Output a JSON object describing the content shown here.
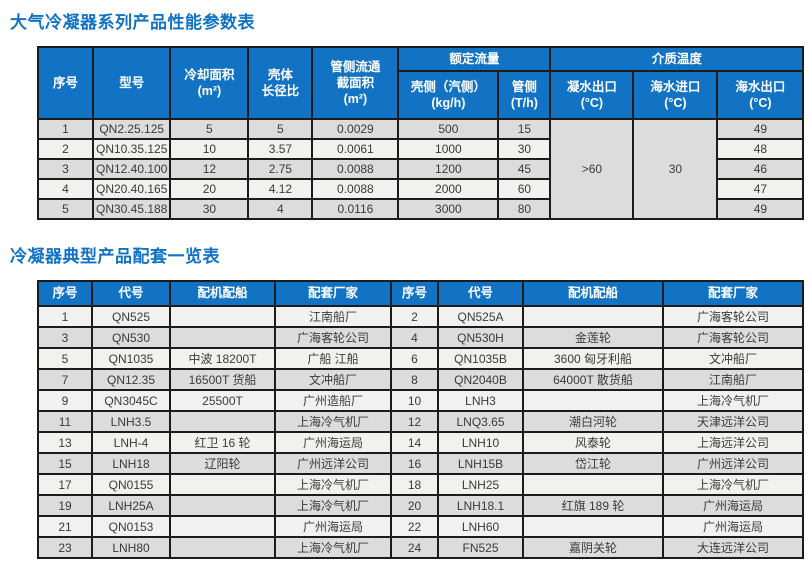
{
  "colors": {
    "title_blue": "#1273c4",
    "header_blue": "#1273c4",
    "header_text": "#ffffff",
    "row_gray": "#dcdcdc",
    "row_light": "#f1f1f0",
    "border_dark": "#1c1c1c",
    "cell_text": "#3a3a3a"
  },
  "table1": {
    "title": "大气冷凝器系列产品性能参数表",
    "headers": {
      "seq": "序号",
      "model": "型号",
      "cooling_area": "冷却面积",
      "cooling_area_unit": "(m²)",
      "shell_ratio_line1": "壳体",
      "shell_ratio_line2": "长径比",
      "tube_area_line1": "管侧流通",
      "tube_area_line2": "截面积",
      "tube_area_unit": "(m²)",
      "rated_flow": "额定流量",
      "shell_side": "壳侧（汽侧）",
      "shell_side_unit": "(kg/h)",
      "tube_side": "管侧",
      "tube_side_unit": "(T/h)",
      "medium_temp": "介质温度",
      "condensate_out": "凝水出口",
      "condensate_out_unit": "(°C)",
      "seawater_in": "海水进口",
      "seawater_in_unit": "(°C)",
      "seawater_out": "海水出口",
      "seawater_out_unit": "(°C)"
    },
    "merged": {
      "condensate_out_value": ">60",
      "seawater_in_value": "30"
    },
    "rows": [
      [
        "1",
        "QN2.25.125",
        "5",
        "5",
        "0.0029",
        "500",
        "15",
        "49"
      ],
      [
        "2",
        "QN10.35.125",
        "10",
        "3.57",
        "0.0061",
        "1000",
        "30",
        "48"
      ],
      [
        "3",
        "QN12.40.100",
        "12",
        "2.75",
        "0.0088",
        "1200",
        "45",
        "46"
      ],
      [
        "4",
        "QN20.40.165",
        "20",
        "4.12",
        "0.0088",
        "2000",
        "60",
        "47"
      ],
      [
        "5",
        "QN30.45.188",
        "30",
        "4",
        "0.0116",
        "3000",
        "80",
        "49"
      ]
    ]
  },
  "table2": {
    "title": "冷凝器典型产品配套一览表",
    "headers": [
      "序号",
      "代号",
      "配机配船",
      "配套厂家"
    ],
    "left_rows": [
      [
        "1",
        "QN525",
        "",
        "江南船厂"
      ],
      [
        "3",
        "QN530",
        "",
        "广海客轮公司"
      ],
      [
        "5",
        "QN1035",
        "中波 18200T",
        "广船 江船"
      ],
      [
        "7",
        "QN12.35",
        "16500T 货船",
        "文冲船厂"
      ],
      [
        "9",
        "QN3045C",
        "25500T",
        "广州造船厂"
      ],
      [
        "11",
        "LNH3.5",
        "",
        "上海冷气机厂"
      ],
      [
        "13",
        "LNH-4",
        "红卫 16 轮",
        "广州海运局"
      ],
      [
        "15",
        "LNH18",
        "辽阳轮",
        "广州远洋公司"
      ],
      [
        "17",
        "QN0155",
        "",
        "上海冷气机厂"
      ],
      [
        "19",
        "LNH25A",
        "",
        "上海冷气机厂"
      ],
      [
        "21",
        "QN0153",
        "",
        "广州海运局"
      ],
      [
        "23",
        "LNH80",
        "",
        "上海冷气机厂"
      ]
    ],
    "right_rows": [
      [
        "2",
        "QN525A",
        "",
        "广海客轮公司"
      ],
      [
        "4",
        "QN530H",
        "金莲轮",
        "广海客轮公司"
      ],
      [
        "6",
        "QN1035B",
        "3600 匈牙利船",
        "文冲船厂"
      ],
      [
        "8",
        "QN2040B",
        "64000T 散货船",
        "江南船厂"
      ],
      [
        "10",
        "LNH3",
        "",
        "上海冷气机厂"
      ],
      [
        "12",
        "LNQ3.65",
        "潮白河轮",
        "天津远洋公司"
      ],
      [
        "14",
        "LNH10",
        "风泰轮",
        "上海远洋公司"
      ],
      [
        "16",
        "LNH15B",
        "岱江轮",
        "广州远洋公司"
      ],
      [
        "18",
        "LNH25",
        "",
        "上海冷气机厂"
      ],
      [
        "20",
        "LNH18.1",
        "红旗 189 轮",
        "广州海运局"
      ],
      [
        "22",
        "LNH60",
        "",
        "广州海运局"
      ],
      [
        "24",
        "FN525",
        "嘉阴关轮",
        "大连远洋公司"
      ]
    ]
  }
}
